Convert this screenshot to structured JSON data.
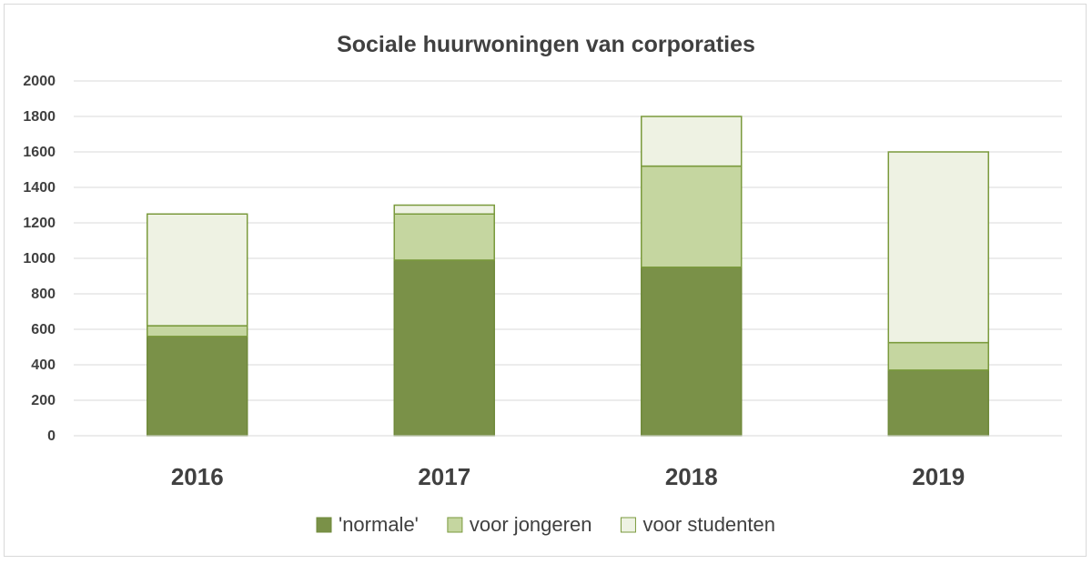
{
  "chart_data": {
    "type": "bar",
    "stacked": true,
    "title": "Sociale huurwoningen van corporaties",
    "xlabel": "",
    "ylabel": "",
    "categories": [
      "2016",
      "2017",
      "2018",
      "2019"
    ],
    "ylim": [
      0,
      2000
    ],
    "yticks": [
      0,
      200,
      400,
      600,
      800,
      1000,
      1200,
      1400,
      1600,
      1800,
      2000
    ],
    "grid": true,
    "legend_position": "bottom",
    "series": [
      {
        "name": "'normale'",
        "color": "#7a9148",
        "stroke": "#6f8a3a",
        "values": [
          560,
          990,
          950,
          370
        ]
      },
      {
        "name": "voor jongeren",
        "color": "#c5d6a0",
        "stroke": "#7a9a3c",
        "values": [
          60,
          260,
          570,
          155
        ]
      },
      {
        "name": "voor studenten",
        "color": "#eef2e3",
        "stroke": "#7a9a3c",
        "values": [
          630,
          50,
          280,
          1075
        ]
      }
    ]
  }
}
